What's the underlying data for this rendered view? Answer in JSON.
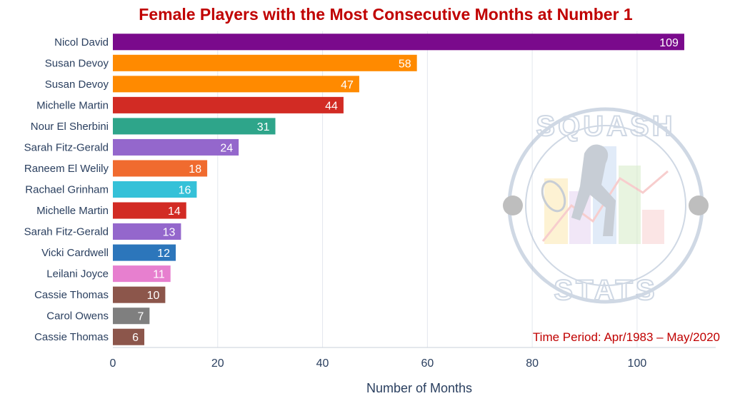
{
  "chart_data": {
    "type": "bar",
    "orientation": "horizontal",
    "title": "Female Players with the Most Consecutive Months at Number 1",
    "xlabel": "Number of Months",
    "ylabel": "",
    "xlim": [
      0,
      115
    ],
    "xticks": [
      0,
      20,
      40,
      60,
      80,
      100
    ],
    "grid": true,
    "categories": [
      "Nicol David",
      "Susan Devoy",
      "Susan Devoy",
      "Michelle Martin",
      "Nour El Sherbini",
      "Sarah Fitz-Gerald",
      "Raneem El Welily",
      "Rachael Grinham",
      "Michelle Martin",
      "Sarah Fitz-Gerald",
      "Vicki Cardwell",
      "Leilani Joyce",
      "Cassie Thomas",
      "Carol Owens",
      "Cassie Thomas"
    ],
    "values": [
      109,
      58,
      47,
      44,
      31,
      24,
      18,
      16,
      14,
      13,
      12,
      11,
      10,
      7,
      6
    ],
    "colors": [
      "#7a0a8c",
      "#ff8a00",
      "#ff8a00",
      "#d22b24",
      "#2ea58a",
      "#9467cc",
      "#f06b2f",
      "#35c1d8",
      "#d22b24",
      "#9467cc",
      "#2c76bb",
      "#e77fcf",
      "#8c564b",
      "#7f7f7f",
      "#8c564b"
    ],
    "annotation": "Time Period: Apr/1983 – May/2020"
  },
  "watermark": {
    "top_text": "SQUASH",
    "bottom_text": "STATS",
    "color": "#a9b9cf"
  }
}
